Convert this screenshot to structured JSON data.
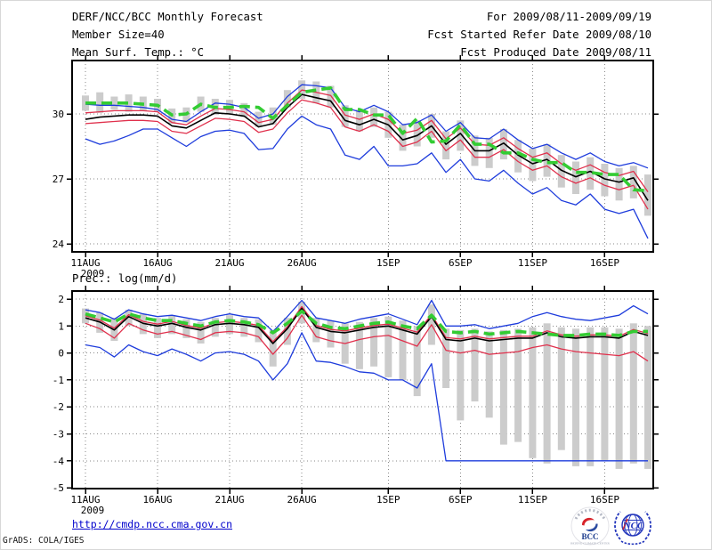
{
  "header": {
    "left": [
      "DERF/NCC/BCC Monthly Forecast",
      "Member Size=40",
      "Mean Surf. Temp.: °C"
    ],
    "right": [
      "For 2009/08/11-2009/09/19",
      "Fcst Started Refer Date 2009/08/10",
      "Fcst Produced Date 2009/08/11"
    ]
  },
  "footer": {
    "url": "http://cmdp.ncc.cma.gov.cn",
    "credit": "GrADS: COLA/IGES"
  },
  "logos": {
    "bcc_label": "BCC",
    "bcc_subtext": "BEIJING CLIMATE CENTER",
    "ncc_label": "NCC"
  },
  "colors": {
    "mean": "#000000",
    "envelope": "#1e3cdc",
    "std": "#e0304c",
    "clim": "#33cc33",
    "spread": "#cccccc",
    "grid": "#8a8a8a",
    "url_blue": "#0000cc",
    "logo_blue": "#2235bb",
    "logo_red": "#d8232a"
  },
  "chart_data": [
    {
      "type": "line",
      "name": "temperature",
      "title": "Mean Surf. Temp.: °C",
      "n_days": 40,
      "x_tick_days": [
        0,
        5,
        10,
        15,
        21,
        26,
        31,
        36
      ],
      "x_tick_labels": [
        "11AUG",
        "16AUG",
        "21AUG",
        "26AUG",
        "1SEP",
        "6SEP",
        "11SEP",
        "16SEP"
      ],
      "x_year": "2009",
      "y_ticks": [
        30,
        27,
        24
      ],
      "ylim": [
        23.6,
        32.5
      ],
      "series": [
        {
          "name": "ensemble-max",
          "color": "envelope",
          "width": 1.3,
          "values": [
            30.45,
            30.4,
            30.4,
            30.35,
            30.3,
            30.2,
            29.75,
            29.65,
            30.1,
            30.5,
            30.45,
            30.3,
            29.8,
            30.0,
            30.8,
            31.35,
            31.3,
            31.2,
            30.3,
            30.1,
            30.4,
            30.1,
            29.5,
            29.6,
            29.95,
            29.2,
            29.6,
            28.9,
            28.85,
            29.3,
            28.8,
            28.4,
            28.6,
            28.2,
            27.9,
            28.2,
            27.8,
            27.6,
            27.75,
            27.5
          ]
        },
        {
          "name": "ensemble-min",
          "color": "envelope",
          "width": 1.3,
          "values": [
            28.85,
            28.6,
            28.75,
            29.0,
            29.3,
            29.3,
            28.9,
            28.5,
            28.95,
            29.2,
            29.25,
            29.1,
            28.35,
            28.4,
            29.3,
            29.9,
            29.5,
            29.3,
            28.1,
            27.9,
            28.5,
            27.6,
            27.6,
            27.7,
            28.2,
            27.3,
            27.9,
            27.0,
            26.9,
            27.4,
            26.8,
            26.3,
            26.6,
            26.0,
            25.8,
            26.3,
            25.6,
            25.4,
            25.6,
            24.25
          ]
        },
        {
          "name": "mean-plus-std",
          "color": "std",
          "width": 1.3,
          "values": [
            30.05,
            30.1,
            30.15,
            30.15,
            30.15,
            30.1,
            29.6,
            29.5,
            29.9,
            30.25,
            30.2,
            30.1,
            29.6,
            29.75,
            30.5,
            31.1,
            31.0,
            30.85,
            29.95,
            29.75,
            30.0,
            29.75,
            29.1,
            29.25,
            29.7,
            28.85,
            29.35,
            28.6,
            28.55,
            28.9,
            28.4,
            28.0,
            28.2,
            27.7,
            27.4,
            27.65,
            27.3,
            27.15,
            27.35,
            26.4
          ]
        },
        {
          "name": "mean-minus-std",
          "color": "std",
          "width": 1.3,
          "values": [
            29.55,
            29.6,
            29.65,
            29.7,
            29.7,
            29.65,
            29.2,
            29.1,
            29.45,
            29.8,
            29.75,
            29.65,
            29.15,
            29.3,
            30.05,
            30.65,
            30.5,
            30.3,
            29.4,
            29.2,
            29.5,
            29.2,
            28.5,
            28.7,
            29.2,
            28.3,
            28.8,
            28.0,
            28.0,
            28.35,
            27.8,
            27.4,
            27.6,
            27.1,
            26.8,
            27.05,
            26.7,
            26.5,
            26.7,
            25.6
          ]
        },
        {
          "name": "ensemble-mean",
          "color": "mean",
          "width": 1.6,
          "values": [
            29.75,
            29.85,
            29.9,
            29.95,
            29.95,
            29.9,
            29.45,
            29.35,
            29.7,
            30.05,
            30.0,
            29.9,
            29.4,
            29.55,
            30.3,
            30.9,
            30.75,
            30.6,
            29.7,
            29.5,
            29.75,
            29.5,
            28.8,
            29.0,
            29.45,
            28.6,
            29.1,
            28.3,
            28.3,
            28.65,
            28.1,
            27.7,
            27.9,
            27.4,
            27.1,
            27.35,
            27.0,
            26.85,
            27.05,
            26.0
          ]
        },
        {
          "name": "climatology",
          "color": "clim",
          "width": 3.6,
          "dash": "12 6",
          "values": [
            30.5,
            30.5,
            30.5,
            30.5,
            30.45,
            30.4,
            29.95,
            30.0,
            30.45,
            30.3,
            30.3,
            30.35,
            30.3,
            29.8,
            30.4,
            31.0,
            31.1,
            31.2,
            30.2,
            30.2,
            29.95,
            29.95,
            29.1,
            29.8,
            28.7,
            28.75,
            29.5,
            28.6,
            28.6,
            28.2,
            28.2,
            27.9,
            27.75,
            27.75,
            27.3,
            27.3,
            27.2,
            27.2,
            26.5,
            26.45
          ]
        }
      ],
      "spread_bars": {
        "lo": [
          30.15,
          30.05,
          30.2,
          30.1,
          30.15,
          30.1,
          29.55,
          29.6,
          30.1,
          29.95,
          30.0,
          29.85,
          29.4,
          29.5,
          30.3,
          30.7,
          30.5,
          30.3,
          29.4,
          29.2,
          29.4,
          28.9,
          28.3,
          28.5,
          28.9,
          27.9,
          28.3,
          27.6,
          27.5,
          27.9,
          27.3,
          26.9,
          27.1,
          26.6,
          26.3,
          26.5,
          26.2,
          26.0,
          26.1,
          25.3
        ],
        "hi": [
          30.85,
          31.0,
          30.8,
          30.9,
          30.8,
          30.7,
          30.25,
          30.3,
          30.8,
          30.7,
          30.65,
          30.5,
          30.1,
          30.3,
          31.1,
          31.55,
          31.5,
          31.3,
          30.4,
          30.2,
          30.3,
          30.1,
          29.5,
          29.7,
          30.0,
          29.2,
          29.7,
          29.0,
          28.9,
          29.3,
          28.8,
          28.4,
          28.6,
          28.1,
          27.8,
          28.0,
          27.7,
          27.5,
          27.6,
          27.2
        ]
      }
    },
    {
      "type": "line",
      "name": "precipitation",
      "title": "Prec.: log(mm/d)",
      "n_days": 40,
      "x_tick_days": [
        0,
        5,
        10,
        15,
        21,
        26,
        31,
        36
      ],
      "x_tick_labels": [
        "11AUG",
        "16AUG",
        "21AUG",
        "26AUG",
        "1SEP",
        "6SEP",
        "11SEP",
        "16SEP"
      ],
      "x_year": "2009",
      "y_ticks": [
        2,
        1,
        0,
        -1,
        -2,
        -3,
        -4,
        -5
      ],
      "ylim": [
        -5,
        2.3
      ],
      "series": [
        {
          "name": "ensemble-max",
          "color": "envelope",
          "width": 1.3,
          "values": [
            1.6,
            1.5,
            1.25,
            1.6,
            1.45,
            1.35,
            1.4,
            1.3,
            1.2,
            1.35,
            1.45,
            1.35,
            1.3,
            0.8,
            1.35,
            1.95,
            1.3,
            1.2,
            1.1,
            1.25,
            1.35,
            1.45,
            1.25,
            1.05,
            1.95,
            1.0,
            1.0,
            1.05,
            0.9,
            1.0,
            1.1,
            1.35,
            1.5,
            1.35,
            1.25,
            1.2,
            1.3,
            1.4,
            1.75,
            1.45
          ]
        },
        {
          "name": "ensemble-min",
          "color": "envelope",
          "width": 1.3,
          "values": [
            0.3,
            0.2,
            -0.15,
            0.3,
            0.05,
            -0.1,
            0.15,
            -0.05,
            -0.3,
            0.0,
            0.05,
            -0.05,
            -0.3,
            -1.0,
            -0.4,
            0.75,
            -0.3,
            -0.35,
            -0.5,
            -0.7,
            -0.75,
            -1.0,
            -1.0,
            -1.3,
            -0.4,
            -4.0,
            -4.0,
            -4.0,
            -4.0,
            -4.0,
            -4.0,
            -4.0,
            -4.0,
            -4.0,
            -4.0,
            -4.0,
            -4.0,
            -4.0,
            -4.0,
            -4.0
          ]
        },
        {
          "name": "mean-plus-std",
          "color": "std",
          "width": 1.3,
          "values": [
            1.38,
            1.22,
            0.92,
            1.42,
            1.17,
            1.07,
            1.17,
            1.02,
            0.92,
            1.12,
            1.17,
            1.12,
            1.02,
            0.42,
            0.97,
            1.72,
            1.02,
            0.87,
            0.82,
            0.92,
            1.02,
            1.07,
            0.92,
            0.77,
            1.42,
            0.57,
            0.52,
            0.62,
            0.52,
            0.57,
            0.62,
            0.62,
            0.82,
            0.67,
            0.62,
            0.67,
            0.67,
            0.62,
            0.87,
            0.72
          ]
        },
        {
          "name": "mean-minus-std",
          "color": "std",
          "width": 1.3,
          "values": [
            1.1,
            0.9,
            0.55,
            1.1,
            0.85,
            0.7,
            0.8,
            0.65,
            0.5,
            0.75,
            0.8,
            0.75,
            0.6,
            -0.05,
            0.55,
            1.4,
            0.6,
            0.45,
            0.35,
            0.5,
            0.6,
            0.65,
            0.45,
            0.25,
            1.05,
            0.1,
            0.0,
            0.1,
            -0.05,
            0.0,
            0.05,
            0.2,
            0.3,
            0.15,
            0.05,
            0.0,
            -0.05,
            -0.1,
            0.05,
            -0.3
          ]
        },
        {
          "name": "ensemble-mean",
          "color": "mean",
          "width": 1.6,
          "values": [
            1.3,
            1.15,
            0.85,
            1.35,
            1.1,
            1.0,
            1.1,
            0.95,
            0.85,
            1.05,
            1.1,
            1.05,
            0.95,
            0.35,
            0.9,
            1.65,
            0.95,
            0.8,
            0.75,
            0.85,
            0.95,
            1.0,
            0.85,
            0.7,
            1.35,
            0.5,
            0.45,
            0.55,
            0.45,
            0.5,
            0.55,
            0.55,
            0.75,
            0.6,
            0.55,
            0.6,
            0.6,
            0.55,
            0.8,
            0.65
          ]
        },
        {
          "name": "climatology",
          "color": "clim",
          "width": 3.6,
          "dash": "12 6",
          "values": [
            1.45,
            1.3,
            1.15,
            1.45,
            1.3,
            1.2,
            1.2,
            1.1,
            1.0,
            1.15,
            1.2,
            1.15,
            1.05,
            0.75,
            1.1,
            1.55,
            1.1,
            0.95,
            0.9,
            1.0,
            1.1,
            1.15,
            1.0,
            0.9,
            1.4,
            0.8,
            0.75,
            0.8,
            0.7,
            0.75,
            0.8,
            0.75,
            0.7,
            0.65,
            0.65,
            0.7,
            0.7,
            0.65,
            0.8,
            0.8
          ]
        }
      ],
      "spread_bars": {
        "lo": [
          1.1,
          0.75,
          0.45,
          1.0,
          0.7,
          0.55,
          0.7,
          0.55,
          0.35,
          0.6,
          0.7,
          0.6,
          0.4,
          -0.5,
          0.3,
          1.1,
          0.4,
          0.2,
          -0.4,
          -0.6,
          -0.5,
          -0.9,
          -1.0,
          -1.6,
          0.3,
          -1.3,
          -2.5,
          -1.8,
          -2.4,
          -3.4,
          -3.3,
          -3.9,
          -4.1,
          -3.6,
          -4.2,
          -4.2,
          -4.0,
          -4.3,
          -4.1,
          -4.3
        ],
        "hi": [
          1.65,
          1.5,
          1.3,
          1.6,
          1.45,
          1.3,
          1.4,
          1.25,
          1.15,
          1.3,
          1.4,
          1.3,
          1.25,
          0.85,
          1.3,
          1.9,
          1.3,
          1.2,
          1.1,
          1.15,
          1.3,
          1.35,
          1.2,
          1.0,
          1.8,
          0.9,
          0.85,
          0.9,
          0.8,
          0.85,
          0.9,
          0.95,
          1.1,
          0.95,
          0.9,
          0.95,
          0.95,
          0.9,
          1.1,
          1.0
        ]
      }
    }
  ]
}
